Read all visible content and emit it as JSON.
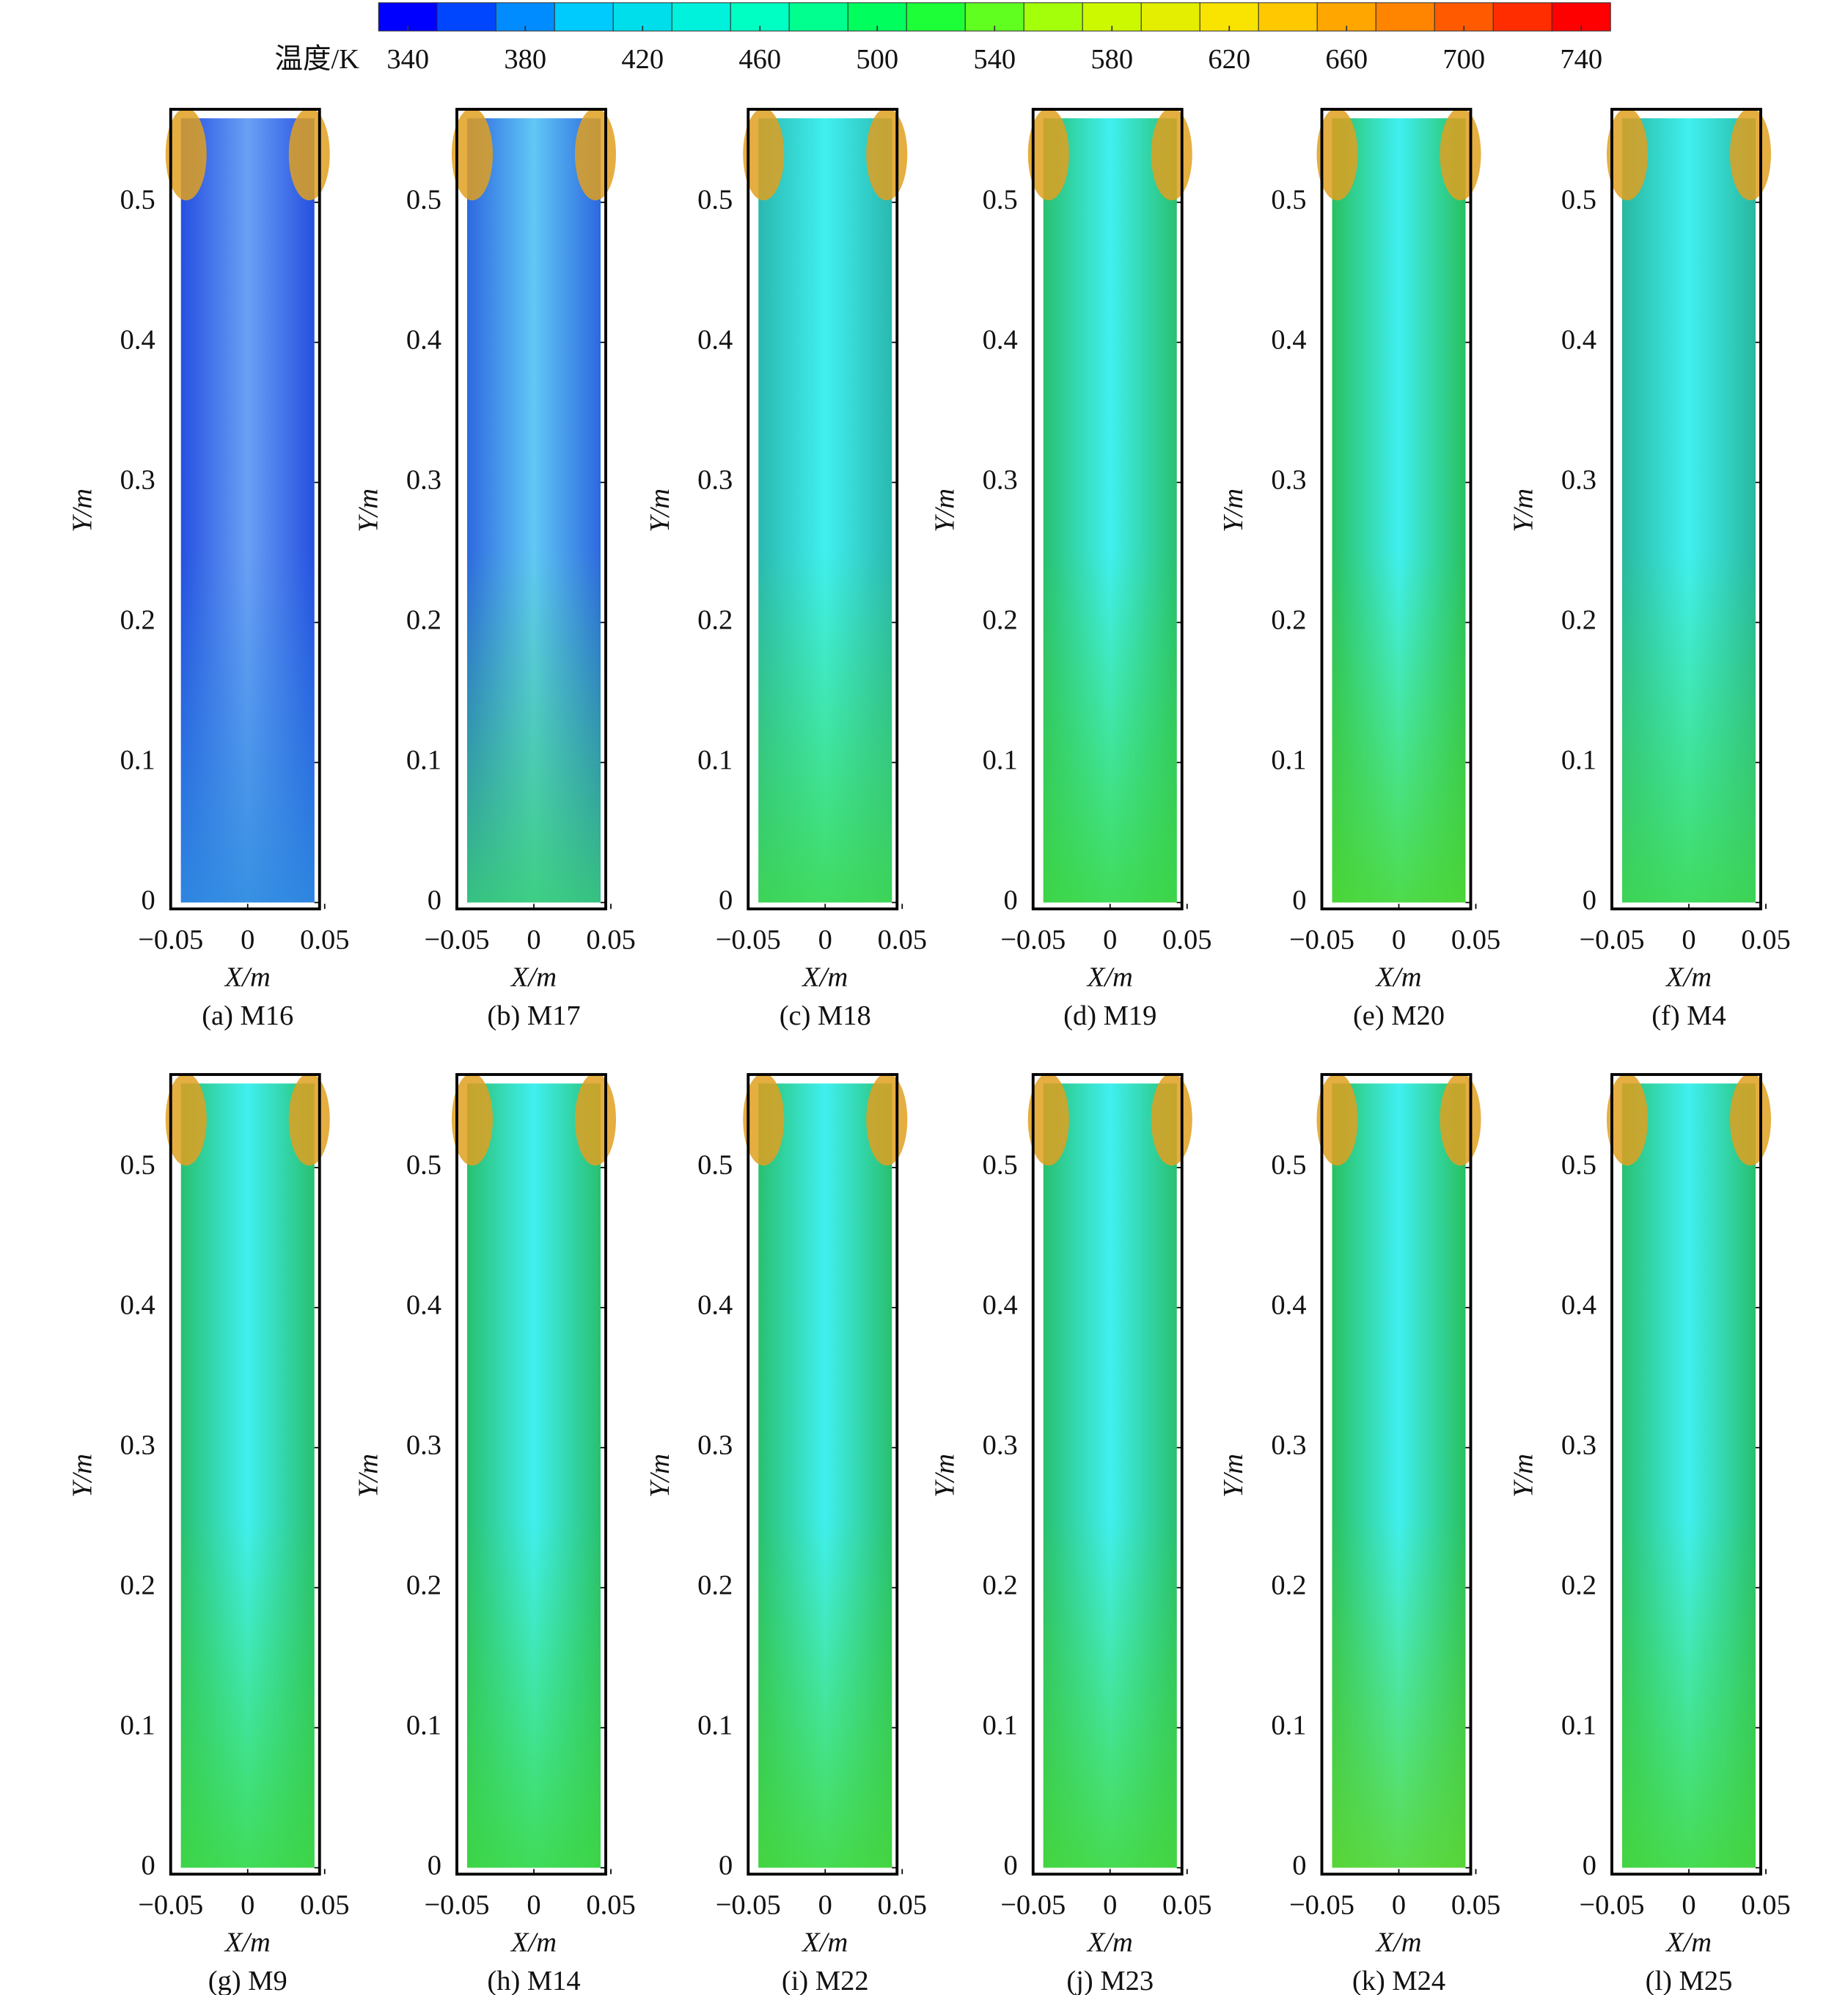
{
  "colorbar": {
    "label": "温度/K",
    "lim": [
      330,
      750
    ],
    "levels": 21,
    "ticks": [
      340,
      380,
      420,
      460,
      500,
      540,
      580,
      620,
      660,
      700,
      740
    ],
    "colormap": [
      "#0000ff",
      "#00c8ff",
      "#00ffd0",
      "#00ff40",
      "#c0ff00",
      "#ffe000",
      "#ff8000",
      "#ff0000"
    ]
  },
  "chart_data": [
    {
      "type": "contour",
      "title": "(a) M16",
      "xlabel": "X/m",
      "ylabel": "Y/m",
      "xlim": [
        -0.05,
        0.05
      ],
      "ylim": [
        0,
        0.56
      ],
      "xticks": [
        {
          "value": -0.05,
          "label": "−0.05"
        },
        0,
        0.05
      ],
      "yticks": [
        0,
        0.1,
        0.2,
        0.3,
        0.4,
        0.5
      ],
      "colors": [
        "#2550e0",
        "#6aa0f5",
        "#2f8ee0"
      ]
    },
    {
      "type": "contour",
      "title": "(b) M17",
      "xlabel": "X/m",
      "ylabel": "Y/m",
      "xlim": [
        -0.05,
        0.05
      ],
      "ylim": [
        0,
        0.56
      ],
      "xticks": [
        {
          "value": -0.05,
          "label": "−0.05"
        },
        0,
        0.05
      ],
      "yticks": [
        0,
        0.1,
        0.2,
        0.3,
        0.4,
        0.5
      ],
      "colors": [
        "#2d68e0",
        "#60c8f5",
        "#38d070"
      ]
    },
    {
      "type": "contour",
      "title": "(c) M18",
      "xlabel": "X/m",
      "ylabel": "Y/m",
      "xlim": [
        -0.05,
        0.05
      ],
      "ylim": [
        0,
        0.56
      ],
      "xticks": [
        {
          "value": -0.05,
          "label": "−0.05"
        },
        0,
        0.05
      ],
      "yticks": [
        0,
        0.1,
        0.2,
        0.3,
        0.4,
        0.5
      ],
      "colors": [
        "#2ab8b0",
        "#40f0f0",
        "#40d848"
      ]
    },
    {
      "type": "contour",
      "title": "(d) M19",
      "xlabel": "X/m",
      "ylabel": "Y/m",
      "xlim": [
        -0.05,
        0.05
      ],
      "ylim": [
        0,
        0.56
      ],
      "xticks": [
        {
          "value": -0.05,
          "label": "−0.05"
        },
        0,
        0.05
      ],
      "yticks": [
        0,
        0.1,
        0.2,
        0.3,
        0.4,
        0.5
      ],
      "colors": [
        "#28c070",
        "#40f0f0",
        "#40d840"
      ]
    },
    {
      "type": "contour",
      "title": "(e) M20",
      "xlabel": "X/m",
      "ylabel": "Y/m",
      "xlim": [
        -0.05,
        0.05
      ],
      "ylim": [
        0,
        0.56
      ],
      "xticks": [
        {
          "value": -0.05,
          "label": "−0.05"
        },
        0,
        0.05
      ],
      "yticks": [
        0,
        0.1,
        0.2,
        0.3,
        0.4,
        0.5
      ],
      "colors": [
        "#28c060",
        "#40f0f0",
        "#50d830"
      ]
    },
    {
      "type": "contour",
      "title": "(f) M4",
      "xlabel": "X/m",
      "ylabel": "Y/m",
      "xlim": [
        -0.05,
        0.05
      ],
      "ylim": [
        0,
        0.56
      ],
      "xticks": [
        {
          "value": -0.05,
          "label": "−0.05"
        },
        0,
        0.05
      ],
      "yticks": [
        0,
        0.1,
        0.2,
        0.3,
        0.4,
        0.5
      ],
      "colors": [
        "#28b8a0",
        "#40f0f0",
        "#40d848"
      ]
    },
    {
      "type": "contour",
      "title": "(g) M9",
      "xlabel": "X/m",
      "ylabel": "Y/m",
      "xlim": [
        -0.05,
        0.05
      ],
      "ylim": [
        0,
        0.56
      ],
      "xticks": [
        {
          "value": -0.05,
          "label": "−0.05"
        },
        0,
        0.05
      ],
      "yticks": [
        0,
        0.1,
        0.2,
        0.3,
        0.4,
        0.5
      ],
      "colors": [
        "#28c070",
        "#40f0f0",
        "#40d840"
      ]
    },
    {
      "type": "contour",
      "title": "(h) M14",
      "xlabel": "X/m",
      "ylabel": "Y/m",
      "xlim": [
        -0.05,
        0.05
      ],
      "ylim": [
        0,
        0.56
      ],
      "xticks": [
        {
          "value": -0.05,
          "label": "−0.05"
        },
        0,
        0.05
      ],
      "yticks": [
        0,
        0.1,
        0.2,
        0.3,
        0.4,
        0.5
      ],
      "colors": [
        "#28c070",
        "#40f0f0",
        "#40d840"
      ]
    },
    {
      "type": "contour",
      "title": "(i) M22",
      "xlabel": "X/m",
      "ylabel": "Y/m",
      "xlim": [
        -0.05,
        0.05
      ],
      "ylim": [
        0,
        0.56
      ],
      "xticks": [
        {
          "value": -0.05,
          "label": "−0.05"
        },
        0,
        0.05
      ],
      "yticks": [
        0,
        0.1,
        0.2,
        0.3,
        0.4,
        0.5
      ],
      "colors": [
        "#28c070",
        "#40f0f0",
        "#48d838"
      ]
    },
    {
      "type": "contour",
      "title": "(j) M23",
      "xlabel": "X/m",
      "ylabel": "Y/m",
      "xlim": [
        -0.05,
        0.05
      ],
      "ylim": [
        0,
        0.56
      ],
      "xticks": [
        {
          "value": -0.05,
          "label": "−0.05"
        },
        0,
        0.05
      ],
      "yticks": [
        0,
        0.1,
        0.2,
        0.3,
        0.4,
        0.5
      ],
      "colors": [
        "#28c070",
        "#40f0f0",
        "#48d838"
      ]
    },
    {
      "type": "contour",
      "title": "(k) M24",
      "xlabel": "X/m",
      "ylabel": "Y/m",
      "xlim": [
        -0.05,
        0.05
      ],
      "ylim": [
        0,
        0.56
      ],
      "xticks": [
        {
          "value": -0.05,
          "label": "−0.05"
        },
        0,
        0.05
      ],
      "yticks": [
        0,
        0.1,
        0.2,
        0.3,
        0.4,
        0.5
      ],
      "colors": [
        "#28c060",
        "#40f0f0",
        "#60d830"
      ]
    },
    {
      "type": "contour",
      "title": "(l) M25",
      "xlabel": "X/m",
      "ylabel": "Y/m",
      "xlim": [
        -0.05,
        0.05
      ],
      "ylim": [
        0,
        0.56
      ],
      "xticks": [
        {
          "value": -0.05,
          "label": "−0.05"
        },
        0,
        0.05
      ],
      "yticks": [
        0,
        0.1,
        0.2,
        0.3,
        0.4,
        0.5
      ],
      "colors": [
        "#28c070",
        "#40f0f0",
        "#48d838"
      ]
    }
  ]
}
